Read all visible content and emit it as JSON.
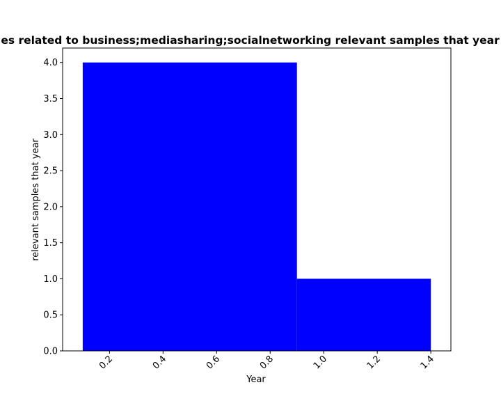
{
  "chart_data": {
    "type": "bar",
    "title": "Number of samples related to business;mediasharing;socialnetworking relevant samples that year in each category",
    "xlabel": "Year",
    "ylabel": "relevant samples that year",
    "bars": [
      {
        "x_start": 0.1,
        "x_end": 0.9,
        "value": 4
      },
      {
        "x_start": 0.9,
        "x_end": 1.4,
        "value": 1
      }
    ],
    "bar_color": "#0000ff",
    "xlim": [
      0.025,
      1.475
    ],
    "ylim": [
      0,
      4.2
    ],
    "xticks": [
      {
        "value": 0.2,
        "label": "0.2"
      },
      {
        "value": 0.4,
        "label": "0.4"
      },
      {
        "value": 0.6,
        "label": "0.6"
      },
      {
        "value": 0.8,
        "label": "0.8"
      },
      {
        "value": 1.0,
        "label": "1.0"
      },
      {
        "value": 1.2,
        "label": "1.2"
      },
      {
        "value": 1.4,
        "label": "1.4"
      }
    ],
    "yticks": [
      {
        "value": 0.0,
        "label": "0.0"
      },
      {
        "value": 0.5,
        "label": "0.5"
      },
      {
        "value": 1.0,
        "label": "1.0"
      },
      {
        "value": 1.5,
        "label": "1.5"
      },
      {
        "value": 2.0,
        "label": "2.0"
      },
      {
        "value": 2.5,
        "label": "2.5"
      },
      {
        "value": 3.0,
        "label": "3.0"
      },
      {
        "value": 3.5,
        "label": "3.5"
      },
      {
        "value": 4.0,
        "label": "4.0"
      }
    ],
    "x_tick_rotation": "45",
    "grid": false,
    "legend": "none"
  }
}
